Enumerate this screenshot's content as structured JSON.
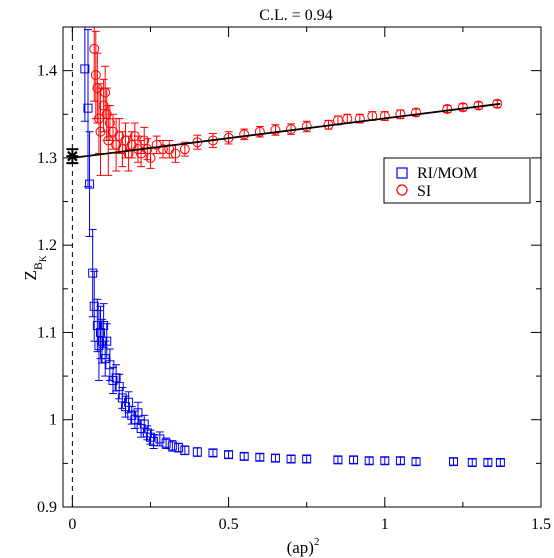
{
  "chart_data": {
    "type": "scatter",
    "title": "C.L. = 0.94",
    "xlabel": "(ap)",
    "xlabel_superscript": "2",
    "ylabel": "Z",
    "ylabel_sub": "B",
    "ylabel_subsub": "K",
    "xlim": [
      -0.03,
      1.5
    ],
    "ylim": [
      0.9,
      1.45
    ],
    "xticks": [
      "0",
      "0.5",
      "1",
      "1.5"
    ],
    "xtick_values": [
      0,
      0.5,
      1,
      1.5
    ],
    "yticks": [
      "0.9",
      "1",
      "1.1",
      "1.2",
      "1.3",
      "1.4"
    ],
    "ytick_values": [
      0.9,
      1.0,
      1.1,
      1.2,
      1.3,
      1.4
    ],
    "legend_position": "right",
    "grid": false,
    "series": [
      {
        "name": "RI/MOM",
        "color": "#0000ee",
        "marker": "square",
        "points": [
          [
            0.04,
            1.402,
            0.06
          ],
          [
            0.05,
            1.357,
            0.09
          ],
          [
            0.055,
            1.27,
            0.06
          ],
          [
            0.065,
            1.168,
            0.05
          ],
          [
            0.07,
            1.13,
            0.04
          ],
          [
            0.08,
            1.108,
            0.03
          ],
          [
            0.085,
            1.085,
            0.04
          ],
          [
            0.09,
            1.1,
            0.03
          ],
          [
            0.095,
            1.09,
            0.025
          ],
          [
            0.1,
            1.108,
            0.025
          ],
          [
            0.105,
            1.07,
            0.02
          ],
          [
            0.11,
            1.09,
            0.02
          ],
          [
            0.12,
            1.063,
            0.018
          ],
          [
            0.13,
            1.045,
            0.015
          ],
          [
            0.14,
            1.048,
            0.015
          ],
          [
            0.15,
            1.038,
            0.014
          ],
          [
            0.16,
            1.025,
            0.012
          ],
          [
            0.17,
            1.015,
            0.012
          ],
          [
            0.18,
            1.02,
            0.012
          ],
          [
            0.19,
            1.005,
            0.01
          ],
          [
            0.2,
            1.0,
            0.01
          ],
          [
            0.21,
            1.008,
            0.012
          ],
          [
            0.22,
            0.99,
            0.01
          ],
          [
            0.23,
            0.995,
            0.01
          ],
          [
            0.24,
            0.985,
            0.008
          ],
          [
            0.25,
            0.98,
            0.008
          ],
          [
            0.26,
            0.975,
            0.008
          ],
          [
            0.28,
            0.978,
            0.008
          ],
          [
            0.3,
            0.973,
            0.006
          ],
          [
            0.32,
            0.97,
            0.006
          ],
          [
            0.34,
            0.968,
            0.005
          ],
          [
            0.36,
            0.965,
            0.005
          ],
          [
            0.4,
            0.963,
            0.005
          ],
          [
            0.45,
            0.962,
            0.004
          ],
          [
            0.5,
            0.96,
            0.004
          ],
          [
            0.55,
            0.958,
            0.004
          ],
          [
            0.6,
            0.957,
            0.004
          ],
          [
            0.65,
            0.956,
            0.004
          ],
          [
            0.7,
            0.955,
            0.004
          ],
          [
            0.75,
            0.955,
            0.004
          ],
          [
            0.85,
            0.954,
            0.004
          ],
          [
            0.9,
            0.954,
            0.004
          ],
          [
            0.95,
            0.953,
            0.004
          ],
          [
            1.0,
            0.953,
            0.004
          ],
          [
            1.05,
            0.953,
            0.004
          ],
          [
            1.1,
            0.952,
            0.004
          ],
          [
            1.22,
            0.952,
            0.004
          ],
          [
            1.28,
            0.951,
            0.004
          ],
          [
            1.33,
            0.951,
            0.004
          ],
          [
            1.37,
            0.951,
            0.004
          ]
        ]
      },
      {
        "name": "SI",
        "color": "#ff0000",
        "marker": "circle",
        "points": [
          [
            0.07,
            1.425,
            0.06
          ],
          [
            0.075,
            1.395,
            0.05
          ],
          [
            0.08,
            1.38,
            0.04
          ],
          [
            0.085,
            1.345,
            0.04
          ],
          [
            0.09,
            1.33,
            0.05
          ],
          [
            0.1,
            1.36,
            0.03
          ],
          [
            0.105,
            1.375,
            0.03
          ],
          [
            0.11,
            1.35,
            0.03
          ],
          [
            0.115,
            1.32,
            0.04
          ],
          [
            0.12,
            1.34,
            0.02
          ],
          [
            0.13,
            1.33,
            0.02
          ],
          [
            0.14,
            1.315,
            0.03
          ],
          [
            0.15,
            1.325,
            0.02
          ],
          [
            0.16,
            1.31,
            0.02
          ],
          [
            0.17,
            1.32,
            0.02
          ],
          [
            0.18,
            1.305,
            0.02
          ],
          [
            0.19,
            1.315,
            0.015
          ],
          [
            0.2,
            1.325,
            0.015
          ],
          [
            0.21,
            1.31,
            0.015
          ],
          [
            0.22,
            1.305,
            0.015
          ],
          [
            0.23,
            1.32,
            0.015
          ],
          [
            0.24,
            1.31,
            0.012
          ],
          [
            0.25,
            1.3,
            0.012
          ],
          [
            0.27,
            1.315,
            0.01
          ],
          [
            0.29,
            1.31,
            0.01
          ],
          [
            0.31,
            1.31,
            0.01
          ],
          [
            0.33,
            1.305,
            0.01
          ],
          [
            0.36,
            1.31,
            0.008
          ],
          [
            0.4,
            1.318,
            0.008
          ],
          [
            0.45,
            1.32,
            0.008
          ],
          [
            0.5,
            1.323,
            0.007
          ],
          [
            0.55,
            1.327,
            0.006
          ],
          [
            0.6,
            1.33,
            0.006
          ],
          [
            0.65,
            1.332,
            0.006
          ],
          [
            0.7,
            1.333,
            0.006
          ],
          [
            0.75,
            1.336,
            0.006
          ],
          [
            0.82,
            1.338,
            0.005
          ],
          [
            0.85,
            1.343,
            0.005
          ],
          [
            0.88,
            1.345,
            0.005
          ],
          [
            0.92,
            1.345,
            0.005
          ],
          [
            0.96,
            1.348,
            0.005
          ],
          [
            1.0,
            1.348,
            0.005
          ],
          [
            1.05,
            1.35,
            0.005
          ],
          [
            1.1,
            1.352,
            0.004
          ],
          [
            1.2,
            1.356,
            0.004
          ],
          [
            1.25,
            1.358,
            0.004
          ],
          [
            1.3,
            1.36,
            0.004
          ],
          [
            1.36,
            1.362,
            0.004
          ]
        ]
      }
    ],
    "fit_line": {
      "color": "#000000",
      "x": [
        0,
        1.37
      ],
      "y": [
        1.3,
        1.362
      ]
    },
    "extrapolated_point": {
      "color": "#000000",
      "marker": "star",
      "x": 0,
      "y": 1.302,
      "err": 0.008
    },
    "vertical_reference": {
      "x": 0,
      "style": "dashed"
    }
  }
}
